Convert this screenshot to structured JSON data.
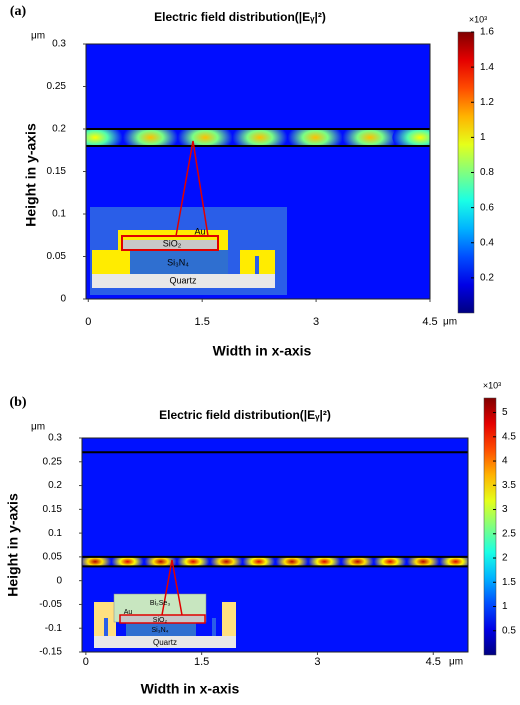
{
  "chart_data": [
    {
      "type": "heatmap",
      "panel_label": "(a)",
      "title": "Electric field distribution(|Eᵧ|²)",
      "x_label": "Width in x-axis",
      "y_label": "Height in y-axis",
      "x_unit": "μm",
      "y_unit": "μm",
      "xlim": [
        -0.03,
        4.5
      ],
      "xticks": [
        0,
        1.5,
        3,
        4.5
      ],
      "ylim": [
        0,
        0.3
      ],
      "yticks": [
        0,
        0.05,
        0.1,
        0.15,
        0.2,
        0.25,
        0.3
      ],
      "colormap": "jet",
      "clim": [
        0,
        1.6
      ],
      "cticks": [
        0.2,
        0.4,
        0.6,
        0.8,
        1,
        1.2,
        1.4,
        1.6
      ],
      "c_multiplier": "×10³",
      "background": 0.22,
      "lines_y": [
        0.2,
        0.18
      ],
      "band": {
        "ylim": [
          0.18,
          0.2
        ],
        "x": [
          0.09,
          0.82,
          1.54,
          2.26,
          2.99,
          3.71,
          4.37
        ],
        "values": [
          1.0,
          1.1,
          1.1,
          1.1,
          1.1,
          1.1,
          1.0
        ]
      },
      "inset_labels": [
        "Au",
        "SiO₂",
        "Si₃N₄",
        "Quartz"
      ]
    },
    {
      "type": "heatmap",
      "panel_label": "(b)",
      "title": "Electric field distribution(|Eᵧ|²)",
      "x_label": "Width in x-axis",
      "y_label": "Height in y-axis",
      "x_unit": "μm",
      "y_unit": "μm",
      "xlim": [
        -0.05,
        4.95
      ],
      "xticks": [
        0,
        1.5,
        3,
        4.5
      ],
      "ylim": [
        -0.15,
        0.3
      ],
      "yticks": [
        -0.15,
        -0.1,
        -0.05,
        0,
        0.05,
        0.1,
        0.15,
        0.2,
        0.25,
        0.3
      ],
      "colormap": "jet",
      "clim": [
        0,
        5.3
      ],
      "cticks": [
        0.5,
        1,
        1.5,
        2,
        2.5,
        3,
        3.5,
        4,
        4.5,
        5
      ],
      "c_multiplier": "×10³",
      "background": 0.75,
      "lines_y": [
        0.27,
        0.05,
        0.03
      ],
      "band": {
        "ylim": [
          0.03,
          0.05
        ],
        "x": [
          0.12,
          0.54,
          0.97,
          1.39,
          1.82,
          2.24,
          2.67,
          3.09,
          3.52,
          3.94,
          4.37,
          4.79
        ],
        "values": [
          5,
          4.8,
          5,
          4.8,
          5,
          4.8,
          5,
          4.8,
          5,
          4.8,
          5,
          4.8
        ]
      },
      "inset_labels": [
        "Bi₂Se₃",
        "Au",
        "SiO₂",
        "Si₃N₄",
        "Quartz"
      ]
    }
  ]
}
